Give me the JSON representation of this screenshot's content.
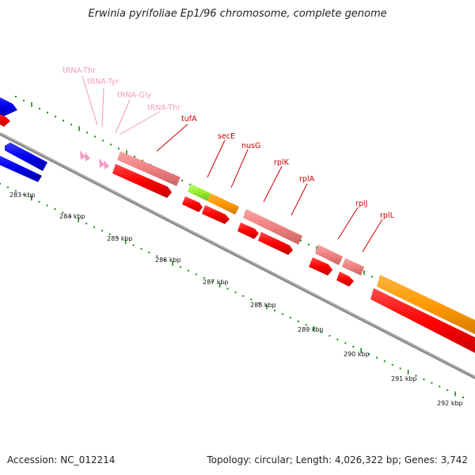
{
  "title": "Erwinia pyrifoliae Ep1/96 chromosome, complete genome",
  "footer": {
    "accession": "Accession: NC_012214",
    "summary": "Topology: circular; Length: 4,026,322 bp; Genes: 3,742"
  },
  "colors": {
    "cds": "#ff0000",
    "trna_label": "#f29ac2",
    "cds_label": "#cc0000",
    "backbone": "#999999",
    "ticks": "#1a8a1a",
    "blue_feature": "#0000ee",
    "orange_feature": "#ff9900",
    "green_feature": "#99ee33",
    "pink_feature": "#f08080"
  },
  "scale_labels": [
    "283 kbp",
    "284 kbp",
    "285 kbp",
    "286 kbp",
    "287 kbp",
    "288 kbp",
    "289 kbp",
    "290 kbp",
    "291 kbp",
    "292 kbp"
  ],
  "trna_labels": [
    "tRNA-Thr",
    "tRNA-Tyr",
    "tRNA-Gly",
    "tRNA-Thr"
  ],
  "gene_labels": [
    "tufA",
    "secE",
    "nusG",
    "rplK",
    "rplA",
    "rplJ",
    "rplL"
  ]
}
